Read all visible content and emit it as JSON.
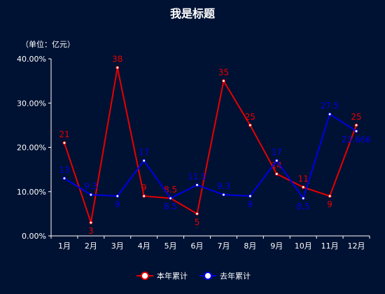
{
  "chart_data": {
    "type": "line",
    "title": "我是标题",
    "unit_label": "（单位：亿元）",
    "categories": [
      "1月",
      "2月",
      "3月",
      "4月",
      "5月",
      "6月",
      "7月",
      "8月",
      "9月",
      "10月",
      "11月",
      "12月"
    ],
    "y_ticks": [
      "0.00%",
      "10.00%",
      "20.00%",
      "30.00%",
      "40.00%"
    ],
    "ylim": [
      0,
      40
    ],
    "grid": false,
    "legend_position": "bottom-center",
    "series": [
      {
        "name": "本年累计",
        "color": "#e60000",
        "values": [
          21,
          3,
          38,
          9,
          8.5,
          5,
          35,
          25,
          14,
          11,
          9,
          25
        ],
        "labels": [
          "21",
          "3",
          "38",
          "9",
          "8.5",
          "5",
          "35",
          "25",
          "14",
          "11",
          "9",
          "25"
        ]
      },
      {
        "name": "去年累计",
        "color": "#0000e6",
        "values": [
          13,
          9.3,
          9,
          17,
          8.5,
          11.5,
          9.3,
          9,
          17,
          8.5,
          27.5,
          23.666
        ],
        "labels": [
          "13",
          "9.3",
          "9",
          "17",
          "8.5",
          "11.5",
          "9.3",
          "9",
          "17",
          "8.5",
          "27.5",
          "23.666"
        ]
      }
    ]
  }
}
